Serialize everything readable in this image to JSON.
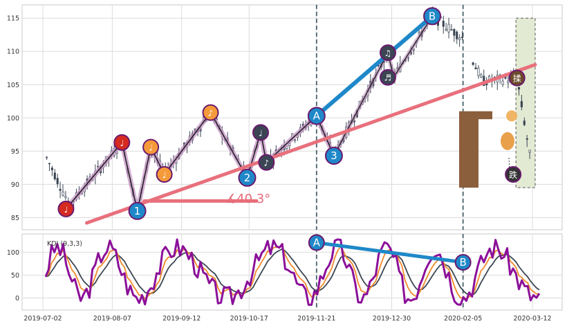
{
  "chart_data": [
    {
      "type": "candlestick",
      "panel": "price",
      "x": [
        "2019-07-02",
        "2020-03-12"
      ],
      "ylim": [
        84,
        117
      ],
      "y_ticks": [
        85,
        90,
        95,
        100,
        105,
        110,
        115
      ],
      "x_ticks": [
        "2019-07-02",
        "2019-08-07",
        "2019-09-12",
        "2019-10-17",
        "2019-11-21",
        "2019-12-30",
        "2020-02-05",
        "2020-03-12"
      ],
      "vlines": [
        "2019-11-21",
        "2020-02-05"
      ],
      "price_path": [
        [
          "2019-07-14",
          86.3
        ],
        [
          "2019-08-12",
          96.3
        ],
        [
          "2019-08-20",
          86.0
        ],
        [
          "2019-08-27",
          95.6
        ],
        [
          "2019-09-03",
          91.5
        ],
        [
          "2019-09-27",
          100.8
        ],
        [
          "2019-10-16",
          91.0
        ],
        [
          "2019-10-23",
          97.8
        ],
        [
          "2019-10-26",
          93.3
        ],
        [
          "2019-11-21",
          100.3
        ],
        [
          "2019-11-30",
          94.3
        ],
        [
          "2019-12-28",
          109.8
        ],
        [
          "2019-12-31",
          106.1
        ],
        [
          "2020-01-20",
          115.3
        ],
        [
          "2020-02-05",
          112.0
        ],
        [
          "2020-02-15",
          105.5
        ],
        [
          "2020-03-04",
          106.0
        ],
        [
          "2020-03-12",
          92.0
        ]
      ],
      "waves": [
        {
          "label": "♩",
          "x": "2019-07-14",
          "y": 86.3,
          "color": "#d42a20"
        },
        {
          "label": "1",
          "x": "2019-08-20",
          "y": 86.0,
          "color": "#1e88c8"
        },
        {
          "label": "♩",
          "x": "2019-08-12",
          "y": 96.3,
          "color": "#d42a20"
        },
        {
          "label": "♩",
          "x": "2019-08-27",
          "y": 95.6,
          "color": "#f59a3a"
        },
        {
          "label": "♩",
          "x": "2019-09-03",
          "y": 91.5,
          "color": "#f59a3a"
        },
        {
          "label": "♪",
          "x": "2019-09-27",
          "y": 100.8,
          "color": "#f59a3a"
        },
        {
          "label": "2",
          "x": "2019-10-16",
          "y": 91.0,
          "color": "#1e88c8"
        },
        {
          "label": "♩",
          "x": "2019-10-23",
          "y": 97.8,
          "color": "#3b4553"
        },
        {
          "label": "♪",
          "x": "2019-10-26",
          "y": 93.3,
          "color": "#3b4553"
        },
        {
          "label": "A",
          "x": "2019-11-21",
          "y": 100.3,
          "color": "#1e88c8"
        },
        {
          "label": "3",
          "x": "2019-11-30",
          "y": 94.3,
          "color": "#1e88c8"
        },
        {
          "label": "♫",
          "x": "2019-12-28",
          "y": 109.8,
          "color": "#3b4553"
        },
        {
          "label": "♬",
          "x": "2019-12-28",
          "y": 106.1,
          "color": "#3b4553"
        },
        {
          "label": "B",
          "x": "2020-01-20",
          "y": 115.3,
          "color": "#1e88c8"
        },
        {
          "label": "揉",
          "x": "2020-03-04",
          "y": 106.0,
          "color": "#6b4a2a"
        },
        {
          "label": "跌",
          "x": "2020-03-02",
          "y": 91.5,
          "color": "#333333"
        }
      ],
      "trendline_pink": [
        [
          "2019-07-14",
          84.2
        ],
        [
          "2020-03-12",
          108.0
        ]
      ],
      "trendline_blue": [
        [
          "2019-11-21",
          100.3
        ],
        [
          "2020-01-20",
          115.3
        ]
      ],
      "support_line": [
        [
          "2019-08-20",
          87.5
        ],
        [
          "2019-10-18",
          87.5
        ]
      ],
      "angle_label": "∡40.3°",
      "highlight_range": [
        "2020-03-02",
        "2020-03-12"
      ]
    },
    {
      "type": "line",
      "panel": "kdj",
      "title": "KDJ (9,3,3)",
      "ylim": [
        -25,
        140
      ],
      "y_ticks": [
        0,
        50,
        100
      ],
      "series": [
        {
          "name": "K",
          "color": "#f08a2a"
        },
        {
          "name": "D",
          "color": "#3b4553"
        },
        {
          "name": "J",
          "color": "#8b0f99"
        }
      ],
      "divergence": [
        [
          "2019-11-21",
          121
        ],
        [
          "2020-02-05",
          78
        ]
      ],
      "divergence_labels": [
        "A",
        "B"
      ]
    }
  ]
}
